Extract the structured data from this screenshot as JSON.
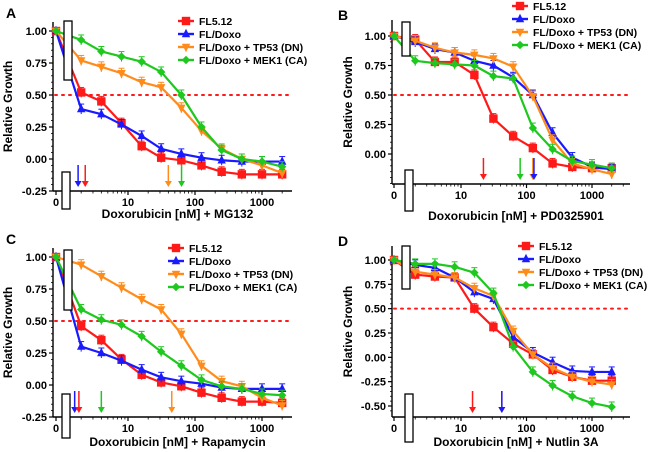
{
  "figure": {
    "series_styles": [
      {
        "name": "FL5.12",
        "color": "#ff1a1a",
        "marker": "square"
      },
      {
        "name": "FL/Doxo",
        "color": "#1a1aff",
        "marker": "triangle-up"
      },
      {
        "name": "FL/Doxo + TP53 (DN)",
        "color": "#ff8c1a",
        "marker": "triangle-down"
      },
      {
        "name": "FL/Doxo + MEK1 (CA)",
        "color": "#1ec81e",
        "marker": "diamond"
      }
    ],
    "threshold_color": "#ff1a1a"
  },
  "chart_data": [
    {
      "panel": "A",
      "type": "line",
      "title": "",
      "xlabel": "Doxorubicin [nM] + MG132",
      "ylabel": "Relative Growth",
      "xscale": "log (with 0 on broken axis)",
      "x_ticks": [
        "0",
        "10",
        "100",
        "1000"
      ],
      "y_ticks": [
        "1.00",
        "0.75",
        "0.50",
        "0.25",
        "0.00",
        "-0.25"
      ],
      "ylim": [
        -0.25,
        1.05
      ],
      "threshold": 0.5,
      "legend": "top-right",
      "x": [
        0,
        2,
        4,
        8,
        16,
        31.25,
        62.5,
        125,
        250,
        500,
        1000,
        2000
      ],
      "series": [
        {
          "name": "FL5.12",
          "values": [
            1.0,
            0.52,
            0.45,
            0.28,
            0.1,
            0.01,
            -0.01,
            -0.05,
            -0.1,
            -0.12,
            -0.12,
            -0.12
          ]
        },
        {
          "name": "FL/Doxo",
          "values": [
            1.0,
            0.39,
            0.35,
            0.27,
            0.18,
            0.08,
            0.04,
            0.01,
            -0.01,
            -0.02,
            -0.02,
            -0.02
          ]
        },
        {
          "name": "FL/Doxo + TP53 (DN)",
          "values": [
            1.0,
            0.77,
            0.72,
            0.67,
            0.6,
            0.56,
            0.4,
            0.22,
            0.08,
            0.0,
            -0.05,
            -0.11
          ]
        },
        {
          "name": "FL/Doxo + MEK1 (CA)",
          "values": [
            1.0,
            0.93,
            0.84,
            0.8,
            0.76,
            0.68,
            0.5,
            0.25,
            0.07,
            0.0,
            -0.02,
            -0.06
          ]
        }
      ],
      "arrows": [
        {
          "series": "FL/Doxo",
          "x": 1.8
        },
        {
          "series": "FL5.12",
          "x": 2.3
        },
        {
          "series": "FL/Doxo + TP53 (DN)",
          "x": 40
        },
        {
          "series": "FL/Doxo + MEK1 (CA)",
          "x": 63
        }
      ]
    },
    {
      "panel": "B",
      "type": "line",
      "title": "",
      "xlabel": "Doxorubicin [nM] + PD0325901",
      "ylabel": "Relative Growth",
      "xscale": "log (with 0 on broken axis)",
      "x_ticks": [
        "0",
        "10",
        "100",
        "1000"
      ],
      "y_ticks": [
        "1.00",
        "0.75",
        "0.50",
        "0.25",
        "0.00"
      ],
      "ylim": [
        -0.25,
        1.1
      ],
      "threshold": 0.5,
      "legend": "top-right",
      "x": [
        0,
        2,
        4,
        8,
        16,
        31.25,
        62.5,
        125,
        250,
        500,
        1000,
        2000
      ],
      "series": [
        {
          "name": "FL5.12",
          "values": [
            1.0,
            0.97,
            0.78,
            0.78,
            0.67,
            0.3,
            0.15,
            0.05,
            -0.08,
            -0.11,
            -0.12,
            -0.12
          ]
        },
        {
          "name": "FL/Doxo",
          "values": [
            1.0,
            0.95,
            0.89,
            0.86,
            0.79,
            0.75,
            0.65,
            0.5,
            0.18,
            -0.03,
            -0.11,
            -0.13
          ]
        },
        {
          "name": "FL/Doxo + TP53 (DN)",
          "values": [
            1.0,
            0.96,
            0.9,
            0.86,
            0.84,
            0.81,
            0.74,
            0.49,
            0.12,
            -0.08,
            -0.13,
            -0.17
          ]
        },
        {
          "name": "FL/Doxo + MEK1 (CA)",
          "values": [
            1.0,
            0.79,
            0.77,
            0.76,
            0.75,
            0.66,
            0.64,
            0.22,
            0.04,
            -0.06,
            -0.09,
            -0.12
          ]
        }
      ],
      "arrows": [
        {
          "series": "FL5.12",
          "x": 22
        },
        {
          "series": "FL/Doxo + MEK1 (CA)",
          "x": 80
        },
        {
          "series": "FL/Doxo + TP53 (DN)",
          "x": 125
        },
        {
          "series": "FL/Doxo",
          "x": 130
        }
      ]
    },
    {
      "panel": "C",
      "type": "line",
      "title": "",
      "xlabel": "Doxorubicin [nM] + Rapamycin",
      "ylabel": "Relative Growth",
      "xscale": "log (with 0 on broken axis)",
      "x_ticks": [
        "0",
        "10",
        "100",
        "1000"
      ],
      "y_ticks": [
        "1.00",
        "0.75",
        "0.50",
        "0.25",
        "0.00",
        "-0.25"
      ],
      "ylim": [
        -0.25,
        1.05
      ],
      "threshold": 0.5,
      "legend": "top-right",
      "x": [
        0,
        2,
        4,
        8,
        16,
        31.25,
        62.5,
        125,
        250,
        500,
        1000,
        2000
      ],
      "series": [
        {
          "name": "FL5.12",
          "values": [
            1.0,
            0.46,
            0.35,
            0.2,
            0.08,
            0.02,
            -0.01,
            -0.06,
            -0.1,
            -0.13,
            -0.13,
            -0.14
          ]
        },
        {
          "name": "FL/Doxo",
          "values": [
            1.0,
            0.3,
            0.25,
            0.19,
            0.12,
            0.06,
            0.03,
            0.01,
            -0.02,
            -0.03,
            -0.03,
            -0.03
          ]
        },
        {
          "name": "FL/Doxo + TP53 (DN)",
          "values": [
            1.0,
            0.94,
            0.85,
            0.76,
            0.67,
            0.59,
            0.4,
            0.15,
            0.03,
            -0.01,
            -0.1,
            -0.16
          ]
        },
        {
          "name": "FL/Doxo + MEK1 (CA)",
          "values": [
            1.0,
            0.59,
            0.51,
            0.47,
            0.38,
            0.26,
            0.15,
            0.04,
            -0.01,
            -0.03,
            -0.07,
            -0.08
          ]
        }
      ],
      "arrows": [
        {
          "series": "FL/Doxo",
          "x": 1.6
        },
        {
          "series": "FL5.12",
          "x": 1.85
        },
        {
          "series": "FL/Doxo + MEK1 (CA)",
          "x": 4
        },
        {
          "series": "FL/Doxo + TP53 (DN)",
          "x": 45
        }
      ]
    },
    {
      "panel": "D",
      "type": "line",
      "title": "",
      "xlabel": "Doxorubicin [nM] + Nutlin 3A",
      "ylabel": "Relative Growth",
      "xscale": "log (with 0 on broken axis)",
      "x_ticks": [
        "0",
        "10",
        "100",
        "1000"
      ],
      "y_ticks": [
        "1.00",
        "0.75",
        "0.50",
        "0.25",
        "0.00",
        "-0.25",
        "-0.50"
      ],
      "ylim": [
        -0.55,
        1.05
      ],
      "threshold": 0.5,
      "legend": "top-right",
      "x": [
        0,
        2,
        4,
        8,
        16,
        31.25,
        62.5,
        125,
        250,
        500,
        1000,
        2000
      ],
      "series": [
        {
          "name": "FL5.12",
          "values": [
            1.0,
            0.85,
            0.83,
            0.82,
            0.5,
            0.31,
            0.14,
            0.03,
            -0.13,
            -0.2,
            -0.24,
            -0.24
          ]
        },
        {
          "name": "FL/Doxo",
          "values": [
            1.0,
            0.95,
            0.92,
            0.82,
            0.67,
            0.6,
            0.21,
            0.05,
            -0.05,
            -0.14,
            -0.15,
            -0.15
          ]
        },
        {
          "name": "FL/Doxo + TP53 (DN)",
          "values": [
            1.0,
            0.88,
            0.85,
            0.82,
            0.71,
            0.63,
            0.27,
            0.03,
            -0.11,
            -0.2,
            -0.25,
            -0.28
          ]
        },
        {
          "name": "FL/Doxo + MEK1 (CA)",
          "values": [
            1.0,
            0.96,
            0.96,
            0.93,
            0.87,
            0.66,
            0.11,
            -0.15,
            -0.29,
            -0.4,
            -0.47,
            -0.51
          ]
        }
      ],
      "arrows": [
        {
          "series": "FL5.12",
          "x": 15
        },
        {
          "series": "FL/Doxo + TP53 (DN)",
          "x": 42
        },
        {
          "series": "FL/Doxo",
          "x": 42
        }
      ]
    }
  ]
}
